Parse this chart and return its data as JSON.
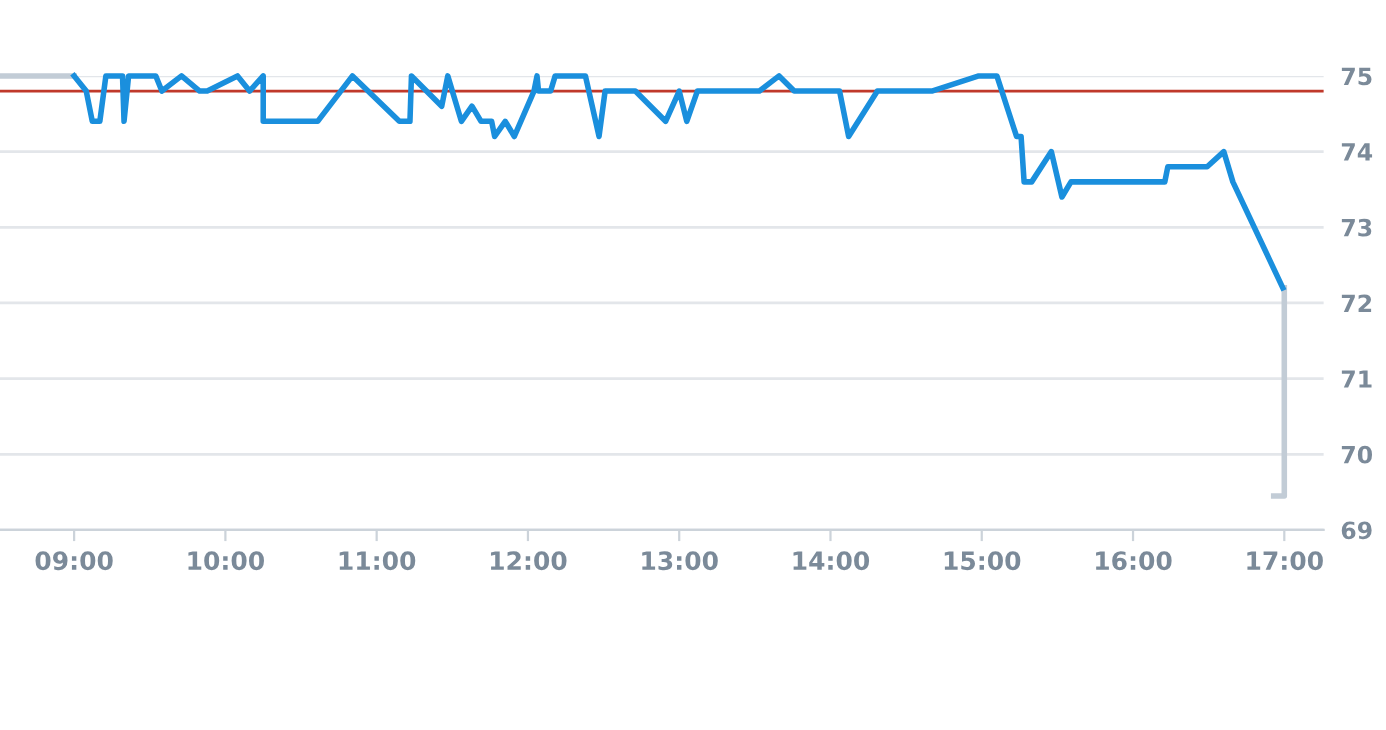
{
  "chart_data": {
    "type": "line",
    "xlim": [
      8.51,
      17.26
    ],
    "xticks": [
      {
        "value": 9,
        "label": "09:00"
      },
      {
        "value": 10,
        "label": "10:00"
      },
      {
        "value": 11,
        "label": "11:00"
      },
      {
        "value": 12,
        "label": "12:00"
      },
      {
        "value": 13,
        "label": "13:00"
      },
      {
        "value": 14,
        "label": "14:00"
      },
      {
        "value": 15,
        "label": "15:00"
      },
      {
        "value": 16,
        "label": "16:00"
      },
      {
        "value": 17,
        "label": "17:00"
      }
    ],
    "ylim": [
      69,
      75
    ],
    "yticks": [
      69,
      70,
      71,
      72,
      73,
      74,
      75
    ],
    "grid": "y",
    "legend": false,
    "line_style": "solid",
    "marker": "none",
    "ref_lines": [
      {
        "axis": "y",
        "value": 74.8,
        "color": "#c0392b"
      }
    ],
    "series": [
      {
        "color": "#c2ccd6",
        "x": [
          8.51,
          9.0,
          null,
          16.93,
          17.0,
          17.0
        ],
        "values": [
          75,
          75,
          null,
          69.45,
          69.45,
          72.2
        ]
      },
      {
        "color": "#1a8fdd",
        "x": [
          9.0,
          9.08,
          9.12,
          9.17,
          9.21,
          9.32,
          9.33,
          9.36,
          9.54,
          9.58,
          9.71,
          9.83,
          9.88,
          10.08,
          10.16,
          10.25,
          10.25,
          10.61,
          10.84,
          11.15,
          11.22,
          11.23,
          11.43,
          11.47,
          11.56,
          11.63,
          11.69,
          11.76,
          11.78,
          11.85,
          11.91,
          12.04,
          12.06,
          12.07,
          12.15,
          12.18,
          12.38,
          12.47,
          12.51,
          12.71,
          12.91,
          13.0,
          13.05,
          13.12,
          13.53,
          13.66,
          13.76,
          14.06,
          14.12,
          14.31,
          14.67,
          14.98,
          15.1,
          15.23,
          15.26,
          15.28,
          15.33,
          15.46,
          15.53,
          15.59,
          16.21,
          16.23,
          16.49,
          16.6,
          16.66,
          16.99
        ],
        "values": [
          75,
          74.8,
          74.4,
          74.4,
          75,
          75,
          74.4,
          75,
          75,
          74.8,
          75,
          74.8,
          74.8,
          75,
          74.8,
          75,
          74.4,
          74.4,
          75,
          74.4,
          74.4,
          75,
          74.6,
          75,
          74.4,
          74.6,
          74.4,
          74.4,
          74.2,
          74.4,
          74.2,
          74.8,
          75,
          74.8,
          74.8,
          75,
          75,
          74.2,
          74.8,
          74.8,
          74.4,
          74.8,
          74.4,
          74.8,
          74.8,
          75,
          74.8,
          74.8,
          74.2,
          74.8,
          74.8,
          75,
          75,
          74.2,
          74.2,
          73.6,
          73.6,
          74.0,
          73.4,
          73.6,
          73.6,
          73.8,
          73.8,
          74.0,
          73.6,
          72.2
        ]
      }
    ]
  }
}
